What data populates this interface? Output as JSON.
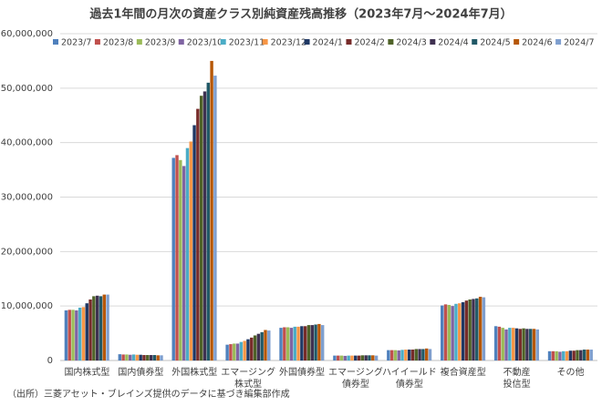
{
  "chart_data": {
    "type": "bar",
    "title": "過去1年間の月次の資産クラス別純資産残高推移（2023年7月～2024年7月）",
    "note": "（出所）三菱アセット・ブレインズ提供のデータに基づき編集部作成",
    "categories": [
      "国内株式型",
      "国内債券型",
      "外国株式型",
      "エマージング\n株式型",
      "外国債券型",
      "エマージング\n債券型",
      "ハイイールド\n債券型",
      "複合資産型",
      "不動産\n投信型",
      "その他"
    ],
    "series": [
      {
        "name": "2023/7",
        "color": "#4f81bd",
        "values": [
          9200000,
          1150000,
          37200000,
          2900000,
          6000000,
          900000,
          1900000,
          10100000,
          6300000,
          1700000
        ]
      },
      {
        "name": "2023/8",
        "color": "#c0504d",
        "values": [
          9300000,
          1100000,
          37700000,
          3000000,
          6100000,
          900000,
          1900000,
          10300000,
          6200000,
          1700000
        ]
      },
      {
        "name": "2023/9",
        "color": "#9bbb59",
        "values": [
          9300000,
          1100000,
          36800000,
          3100000,
          6100000,
          900000,
          1900000,
          10200000,
          6000000,
          1700000
        ]
      },
      {
        "name": "2023/10",
        "color": "#8064a2",
        "values": [
          9200000,
          1050000,
          35700000,
          3100000,
          6000000,
          850000,
          1850000,
          10000000,
          5700000,
          1600000
        ]
      },
      {
        "name": "2023/11",
        "color": "#4bacc6",
        "values": [
          9700000,
          1100000,
          39000000,
          3400000,
          6200000,
          900000,
          1950000,
          10400000,
          6000000,
          1700000
        ]
      },
      {
        "name": "2023/12",
        "color": "#f79646",
        "values": [
          9800000,
          1050000,
          40200000,
          3600000,
          6200000,
          900000,
          2000000,
          10500000,
          6000000,
          1700000
        ]
      },
      {
        "name": "2024/1",
        "color": "#1f3864",
        "values": [
          10500000,
          1050000,
          43200000,
          3900000,
          6300000,
          900000,
          2000000,
          10700000,
          5900000,
          1800000
        ]
      },
      {
        "name": "2024/2",
        "color": "#772c2a",
        "values": [
          11200000,
          1000000,
          46200000,
          4200000,
          6300000,
          900000,
          2000000,
          11000000,
          5800000,
          1800000
        ]
      },
      {
        "name": "2024/3",
        "color": "#4f6228",
        "values": [
          11800000,
          1000000,
          48600000,
          4600000,
          6500000,
          950000,
          2100000,
          11200000,
          5900000,
          1900000
        ]
      },
      {
        "name": "2024/4",
        "color": "#3f3151",
        "values": [
          11900000,
          1000000,
          49400000,
          4900000,
          6500000,
          950000,
          2100000,
          11300000,
          5800000,
          1900000
        ]
      },
      {
        "name": "2024/5",
        "color": "#215967",
        "values": [
          11800000,
          1000000,
          51000000,
          5200000,
          6600000,
          950000,
          2100000,
          11400000,
          5800000,
          2000000
        ]
      },
      {
        "name": "2024/6",
        "color": "#b65708",
        "values": [
          12100000,
          950000,
          55000000,
          5600000,
          6700000,
          950000,
          2200000,
          11700000,
          5800000,
          2000000
        ]
      },
      {
        "name": "2024/7",
        "color": "#7f9fcf",
        "values": [
          12100000,
          950000,
          52300000,
          5500000,
          6500000,
          900000,
          2100000,
          11600000,
          5700000,
          2000000
        ]
      }
    ],
    "ylim": [
      0,
      60000000
    ],
    "yticks": [
      0,
      {
        "value": 10000000,
        "label": "10,000,000"
      },
      {
        "value": 20000000,
        "label": "20,000,000"
      },
      {
        "value": 30000000,
        "label": "30,000,000"
      },
      {
        "value": 40000000,
        "label": "40,000,000"
      },
      {
        "value": 50000000,
        "label": "50,000,000"
      },
      {
        "value": 60000000,
        "label": "60,000,000"
      }
    ],
    "grid": true
  }
}
